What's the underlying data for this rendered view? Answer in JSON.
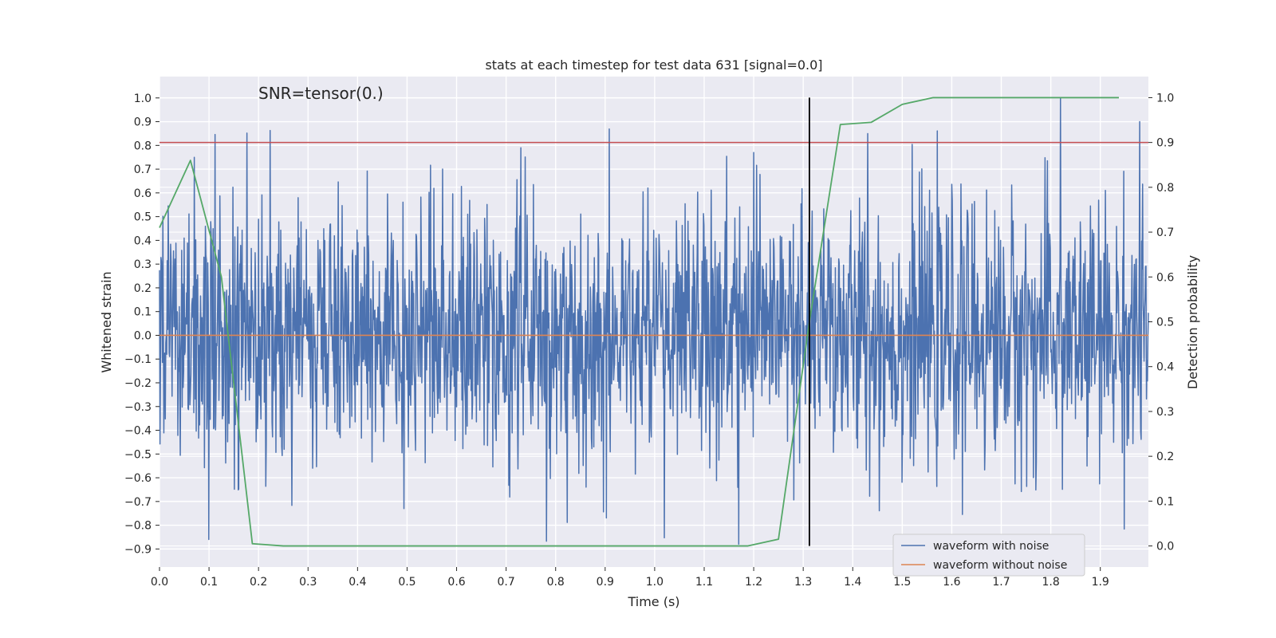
{
  "chart_data": {
    "type": "line",
    "title": "stats at each timestep for test data 631 [signal=0.0]",
    "xlabel": "Time (s)",
    "ylabel_left": "Whitened strain",
    "ylabel_right": "Detection probability",
    "annotation": "SNR=tensor(0.)",
    "xlim": [
      0.0,
      1.9971
    ],
    "ylim_left": [
      -0.976,
      1.09
    ],
    "ylim_right": [
      -0.047,
      1.047
    ],
    "grid": true,
    "legend_position": "lower right",
    "x_ticks": [
      "0.0",
      "0.1",
      "0.2",
      "0.3",
      "0.4",
      "0.5",
      "0.6",
      "0.7",
      "0.8",
      "0.9",
      "1.0",
      "1.1",
      "1.2",
      "1.3",
      "1.4",
      "1.5",
      "1.6",
      "1.7",
      "1.8",
      "1.9"
    ],
    "y_ticks_left": [
      "-0.9",
      "-0.8",
      "-0.7",
      "-0.6",
      "-0.5",
      "-0.4",
      "-0.3",
      "-0.2",
      "-0.1",
      "0.0",
      "0.1",
      "0.2",
      "0.3",
      "0.4",
      "0.5",
      "0.6",
      "0.7",
      "0.8",
      "0.9",
      "1.0"
    ],
    "y_ticks_right": [
      "0.0",
      "0.1",
      "0.2",
      "0.3",
      "0.4",
      "0.5",
      "0.6",
      "0.7",
      "0.8",
      "0.9",
      "1.0"
    ],
    "series": [
      {
        "name": "waveform with noise",
        "color": "#4c72b0",
        "axis": "left",
        "x_start": 0.0,
        "x_end": 1.9971,
        "samples": 2048,
        "amplitude_profile": "gaussian noise, roughly within -0.9 to 1.0",
        "notable_peaks": [
          {
            "x": 0.07,
            "y": 0.75
          },
          {
            "x": 0.73,
            "y": 0.79
          },
          {
            "x": 1.2,
            "y": 0.77
          },
          {
            "x": 1.43,
            "y": 0.85
          },
          {
            "x": 1.82,
            "y": 1.0
          },
          {
            "x": 1.98,
            "y": 0.9
          },
          {
            "x": 1.17,
            "y": -0.88
          },
          {
            "x": 0.1,
            "y": -0.86
          }
        ]
      },
      {
        "name": "waveform without noise",
        "color": "#dd8452",
        "axis": "left",
        "x": [
          0.0,
          1.9971
        ],
        "y": [
          0.0,
          0.0
        ]
      }
    ],
    "detection_probability": {
      "color": "#55a868",
      "axis": "right",
      "x": [
        0.0,
        0.0625,
        0.125,
        0.1875,
        0.25,
        0.3125,
        0.375,
        0.4375,
        0.5,
        0.5625,
        0.625,
        0.6875,
        0.75,
        0.8125,
        0.875,
        0.9375,
        1.0,
        1.0625,
        1.125,
        1.1875,
        1.25,
        1.3125,
        1.375,
        1.4375,
        1.5,
        1.5625,
        1.625,
        1.6875,
        1.75,
        1.8125,
        1.875,
        1.9375
      ],
      "y": [
        0.71,
        0.86,
        0.6,
        0.005,
        0.0,
        0.0,
        0.0,
        0.0,
        0.0,
        0.0,
        0.0,
        0.0,
        0.0,
        0.0,
        0.0,
        0.0,
        0.0,
        0.0,
        0.0,
        0.0,
        0.015,
        0.5,
        0.94,
        0.945,
        0.985,
        1.0,
        1.0,
        1.0,
        1.0,
        1.0,
        1.0,
        1.0
      ]
    },
    "threshold_line": {
      "color": "#c44e52",
      "y_right": 0.9
    },
    "vertical_marker": {
      "color": "#000000",
      "x": 1.3125,
      "y_right_range": [
        0.0,
        1.0
      ]
    }
  }
}
